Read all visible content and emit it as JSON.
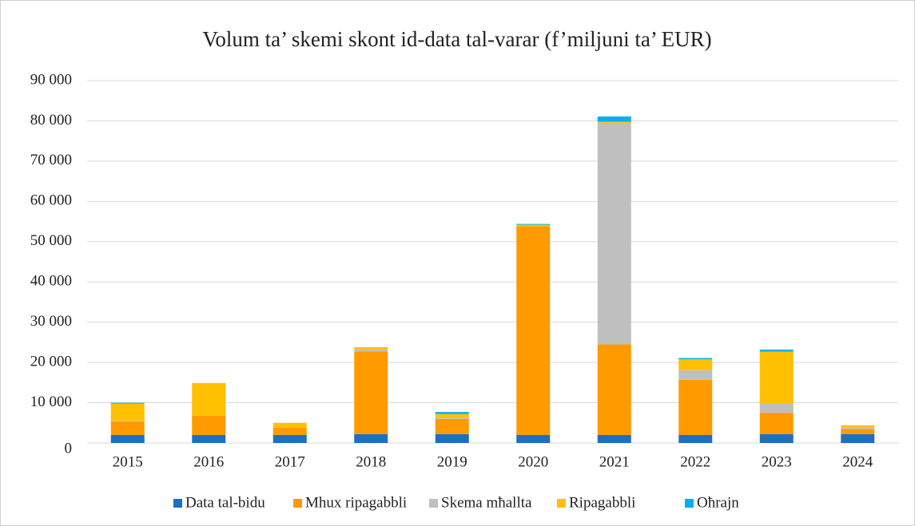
{
  "chart_data": {
    "type": "stacked_bar",
    "title": "Volum ta’ skemi skont id-data tal-varar (f’miljuni ta’ EUR)",
    "categories": [
      "2015",
      "2016",
      "2017",
      "2018",
      "2019",
      "2020",
      "2021",
      "2022",
      "2023",
      "2024"
    ],
    "series": [
      {
        "name": "Data tal-bidu",
        "color": "#1f6fc0",
        "values": [
          2000,
          2000,
          2000,
          2200,
          2200,
          2000,
          2000,
          2000,
          2200,
          2200
        ]
      },
      {
        "name": "Mhux ripagabbli",
        "color": "#ff9a00",
        "values": [
          3400,
          4800,
          1800,
          20500,
          3800,
          51800,
          22500,
          13700,
          5300,
          1300
        ]
      },
      {
        "name": "Skema mħallta",
        "color": "#bfbfbf",
        "values": [
          100,
          0,
          0,
          500,
          300,
          0,
          55000,
          2400,
          2300,
          400
        ]
      },
      {
        "name": "Ripagabbli",
        "color": "#ffc000",
        "values": [
          4300,
          8100,
          1200,
          600,
          900,
          400,
          300,
          2700,
          12900,
          500
        ]
      },
      {
        "name": "Oħrajn",
        "color": "#00b0f0",
        "values": [
          200,
          0,
          0,
          0,
          500,
          200,
          1300,
          300,
          500,
          0
        ]
      }
    ],
    "ylim": [
      0,
      90000
    ],
    "yticks": [
      0,
      {
        "value": 10000,
        "label": "10 000"
      },
      {
        "value": 20000,
        "label": "20 000"
      },
      {
        "value": 30000,
        "label": "30 000"
      },
      {
        "value": 40000,
        "label": "40 000"
      },
      {
        "value": 50000,
        "label": "50 000"
      },
      {
        "value": 60000,
        "label": "60 000"
      },
      {
        "value": 70000,
        "label": "70 000"
      },
      {
        "value": 80000,
        "label": "80 000"
      },
      {
        "value": 90000,
        "label": "90 000"
      }
    ],
    "grid": true,
    "legend": "bottom"
  }
}
